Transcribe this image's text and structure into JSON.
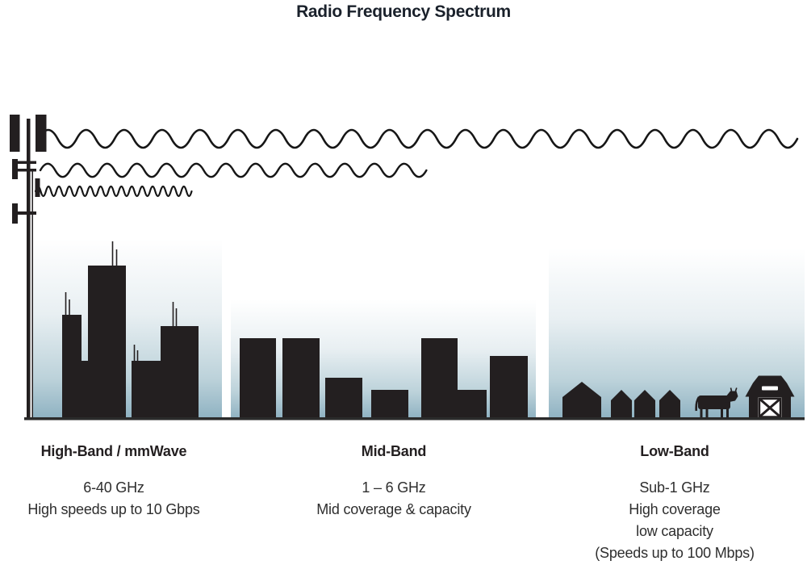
{
  "title": "Radio Frequency Spectrum",
  "bands": [
    {
      "name": "High-Band / mmWave",
      "details": [
        "6-40 GHz",
        "High speeds up to 10 Gbps"
      ]
    },
    {
      "name": "Mid-Band",
      "details": [
        "1 – 6 GHz",
        "Mid coverage & capacity"
      ]
    },
    {
      "name": "Low-Band",
      "details": [
        "Sub-1 GHz",
        "High coverage",
        "low capacity",
        "(Speeds up to 100 Mbps)"
      ]
    }
  ],
  "icons": {
    "tower": "cell-tower-icon",
    "high_band_wave": "short-wavelength-wave-icon",
    "mid_band_wave": "medium-wavelength-wave-icon",
    "low_band_wave": "long-wavelength-wave-icon",
    "high_band_scene": "city-skyline-icon",
    "mid_band_scene": "midrise-buildings-icon",
    "low_band_scene": "rural-scene-icon",
    "house": "house-icon",
    "cow": "cow-icon",
    "barn": "barn-icon"
  },
  "colors": {
    "silhouette": "#231f20",
    "wave_stroke": "#161616",
    "sky_top": "#ffffff",
    "sky_bottom": "#8fb2c2",
    "ground": "#2b2b2b",
    "title_text": "#1a212b",
    "body_text": "#2e2e2e"
  }
}
